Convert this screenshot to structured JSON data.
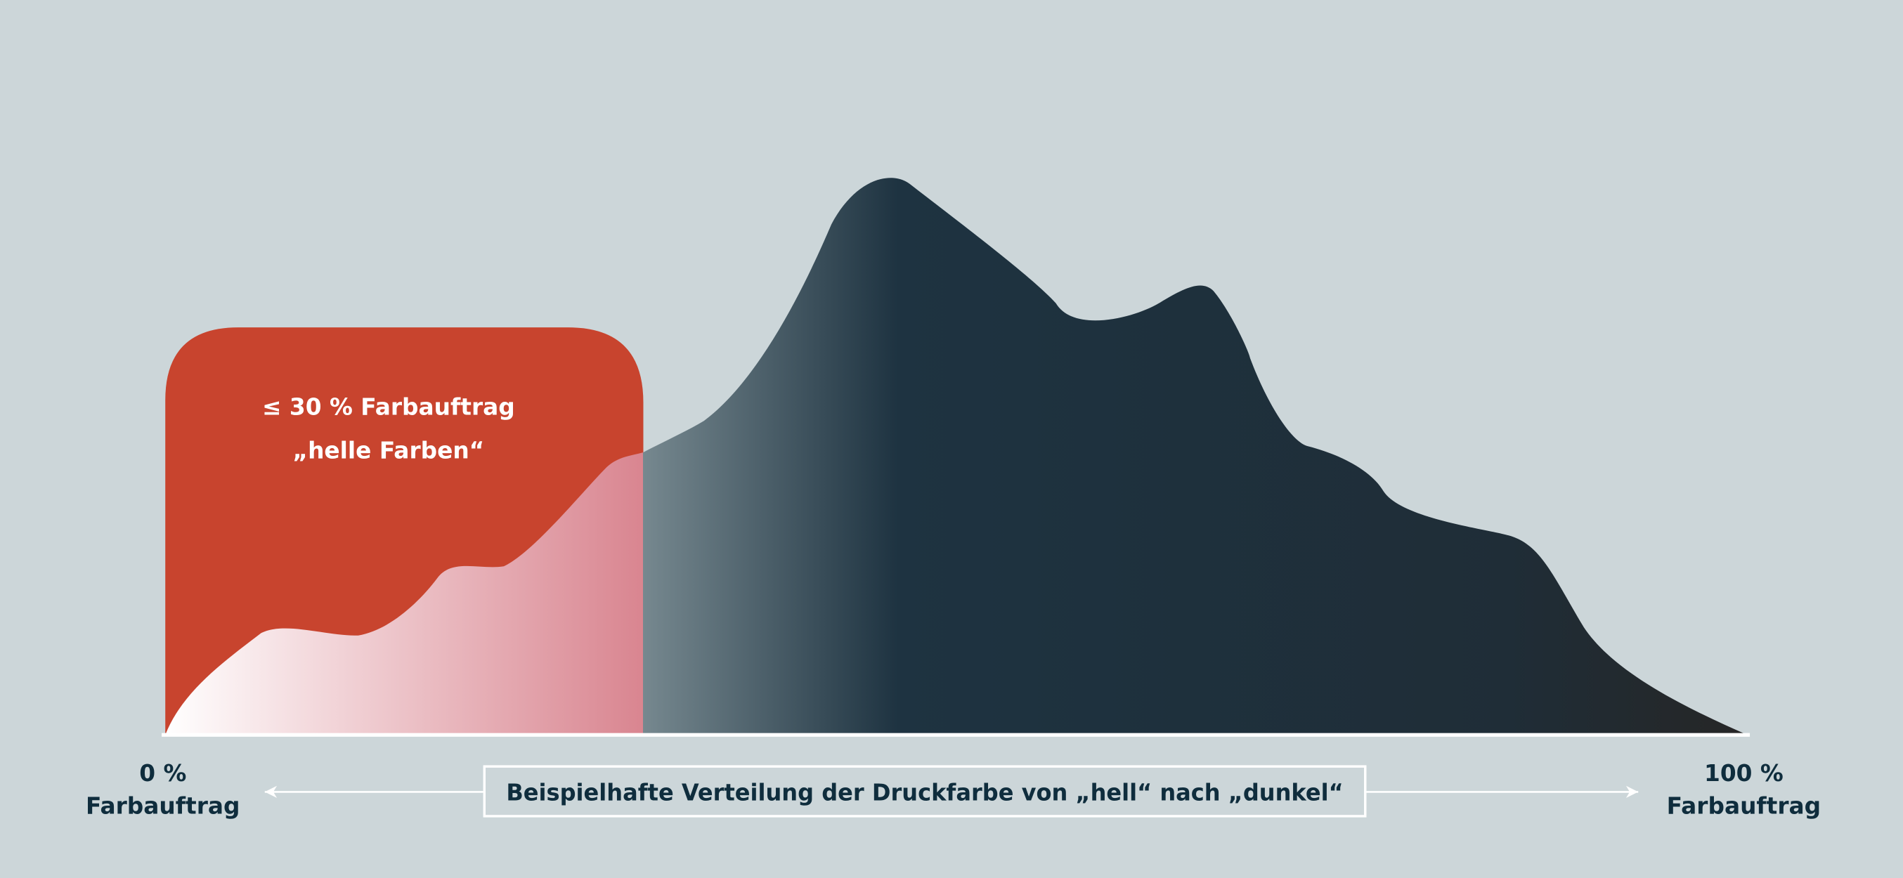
{
  "highlight_box": {
    "line1": "≤ 30 % Farbauftrag",
    "line2": "„helle Farben“"
  },
  "axis": {
    "left": {
      "value": "0 %",
      "label": "Farbauftrag"
    },
    "right": {
      "value": "100 %",
      "label": "Farbauftrag"
    },
    "caption": "Beispielhafte Verteilung der Druckfarbe von „hell“ nach „dunkel“"
  }
}
